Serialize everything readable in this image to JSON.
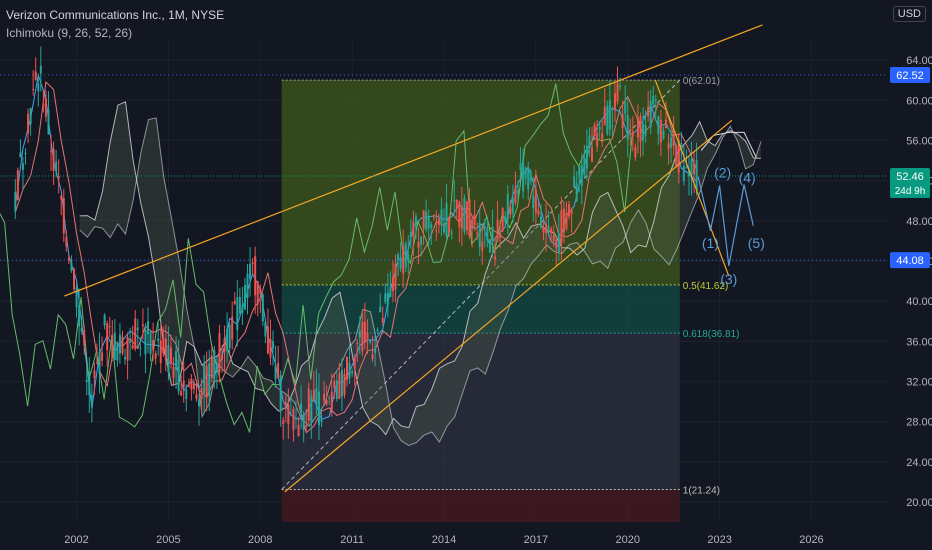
{
  "header": {
    "title": "Verizon Communications Inc., 1M, NYSE",
    "indicator": "Ichimoku (9, 26, 52, 26)",
    "currency": "USD"
  },
  "price_badges": {
    "last": "52.46",
    "countdown": "24d 9h",
    "high_level": "62.52",
    "support_level": "44.08"
  },
  "colors": {
    "background": "#131722",
    "up": "#26a69a",
    "down": "#ef5350",
    "trendline": "#f5a623",
    "span_a": "#4caf50",
    "span_b": "#ef5350",
    "lagging": "#66bb6a",
    "base": "#e57373",
    "conversion": "#42a5f5",
    "wave": "#5b9bd5",
    "fib_green": "#3f5a1c",
    "fib_teal": "#124b44",
    "fib_grey": "#2e3140",
    "fib_red": "#4a1a1f"
  },
  "chart_data": {
    "type": "candlestick",
    "title": "Verizon Communications Inc., 1M, NYSE",
    "xlabel": "",
    "ylabel": "",
    "currency": "USD",
    "x_ticks": [
      "2002",
      "2005",
      "2008",
      "2011",
      "2014",
      "2017",
      "2020",
      "2023",
      "2026"
    ],
    "y_ticks": [
      "20.00",
      "24.00",
      "28.00",
      "32.00",
      "36.00",
      "40.00",
      "44.00",
      "48.00",
      "52.00",
      "56.00",
      "60.00",
      "64.00"
    ],
    "ylim": [
      18,
      66
    ],
    "xlim": [
      1999.5,
      2028.5
    ],
    "last_price": 52.46,
    "horizontal_levels": [
      62.52,
      44.08
    ],
    "close_path": [
      [
        2000.0,
        50
      ],
      [
        2000.4,
        58
      ],
      [
        2000.8,
        63
      ],
      [
        2001.2,
        55
      ],
      [
        2001.6,
        48
      ],
      [
        2002.0,
        41
      ],
      [
        2002.5,
        30
      ],
      [
        2002.9,
        37
      ],
      [
        2003.4,
        35
      ],
      [
        2003.9,
        37
      ],
      [
        2004.4,
        36
      ],
      [
        2004.9,
        35
      ],
      [
        2005.3,
        33
      ],
      [
        2005.8,
        31
      ],
      [
        2006.3,
        32
      ],
      [
        2006.8,
        36
      ],
      [
        2007.3,
        39
      ],
      [
        2007.8,
        43
      ],
      [
        2008.3,
        36
      ],
      [
        2008.8,
        29
      ],
      [
        2009.2,
        28
      ],
      [
        2009.7,
        30
      ],
      [
        2010.2,
        29
      ],
      [
        2010.7,
        32
      ],
      [
        2011.2,
        36
      ],
      [
        2011.7,
        36
      ],
      [
        2012.2,
        40
      ],
      [
        2012.7,
        45
      ],
      [
        2013.2,
        47
      ],
      [
        2013.7,
        49
      ],
      [
        2014.2,
        48
      ],
      [
        2014.7,
        49
      ],
      [
        2015.2,
        47
      ],
      [
        2015.7,
        46
      ],
      [
        2016.2,
        50
      ],
      [
        2016.7,
        53
      ],
      [
        2017.2,
        48
      ],
      [
        2017.7,
        46
      ],
      [
        2018.2,
        50
      ],
      [
        2018.7,
        55
      ],
      [
        2019.2,
        58
      ],
      [
        2019.7,
        60
      ],
      [
        2020.2,
        56
      ],
      [
        2020.7,
        59
      ],
      [
        2021.0,
        58
      ],
      [
        2021.4,
        56
      ],
      [
        2021.8,
        54
      ],
      [
        2022.1,
        53
      ],
      [
        2022.3,
        52.46
      ]
    ],
    "trendlines": [
      {
        "from": [
          2001.6,
          40.5
        ],
        "to": [
          2024.4,
          67.5
        ]
      },
      {
        "from": [
          2008.8,
          21.0
        ],
        "to": [
          2023.4,
          58.0
        ]
      },
      {
        "from": [
          2020.9,
          62.0
        ],
        "to": [
          2023.3,
          42.5
        ]
      }
    ],
    "fibonacci": {
      "x_range": [
        2008.7,
        2021.7
      ],
      "levels": [
        {
          "ratio": "0",
          "value": 62.01,
          "label": "0(62.01)"
        },
        {
          "ratio": "0.5",
          "value": 41.62,
          "label": "0.5(41.62)"
        },
        {
          "ratio": "0.618",
          "value": 36.81,
          "label": "0.618(36.81)"
        },
        {
          "ratio": "1",
          "value": 21.24,
          "label": "1(21.24)"
        }
      ]
    },
    "elliott_waves": [
      {
        "label": "(1)",
        "x": 2022.7,
        "y": 45.8
      },
      {
        "label": "(2)",
        "x": 2023.1,
        "y": 52.8
      },
      {
        "label": "(3)",
        "x": 2023.3,
        "y": 42.2
      },
      {
        "label": "(4)",
        "x": 2023.9,
        "y": 52.3
      },
      {
        "label": "(5)",
        "x": 2024.2,
        "y": 45.8
      }
    ],
    "wave_path": [
      [
        2022.3,
        52.4
      ],
      [
        2022.7,
        47.0
      ],
      [
        2023.0,
        51.5
      ],
      [
        2023.3,
        43.5
      ],
      [
        2023.8,
        51.6
      ],
      [
        2024.1,
        47.5
      ]
    ],
    "cloud_projection": [
      [
        2022.4,
        55
      ],
      [
        2022.8,
        56.5
      ],
      [
        2023.3,
        56.8
      ],
      [
        2023.8,
        56.8
      ],
      [
        2024.2,
        54.3
      ]
    ]
  }
}
